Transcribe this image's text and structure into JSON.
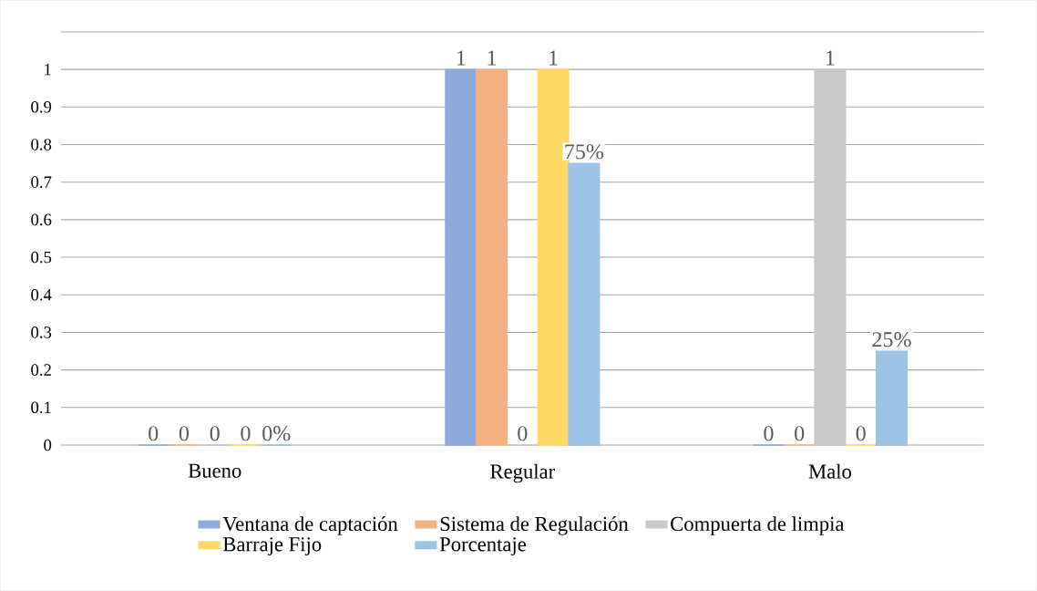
{
  "chart_data": {
    "type": "bar",
    "categories": [
      "Bueno",
      "Regular",
      "Malo"
    ],
    "series": [
      {
        "name": "Ventana de captación",
        "color": "#8faadc",
        "values": [
          0,
          1,
          0
        ],
        "value_labels": [
          "0",
          "1",
          "0"
        ]
      },
      {
        "name": "Sistema de Regulación",
        "color": "#f4b183",
        "values": [
          0,
          1,
          0
        ],
        "value_labels": [
          "0",
          "1",
          "0"
        ]
      },
      {
        "name": "Compuerta de limpia",
        "color": "#c9c9c9",
        "values": [
          0,
          0,
          1
        ],
        "value_labels": [
          "0",
          "0",
          "1"
        ]
      },
      {
        "name": "Barraje Fijo",
        "color": "#ffd966",
        "values": [
          0,
          1,
          0
        ],
        "value_labels": [
          "0",
          "1",
          "0"
        ]
      },
      {
        "name": "Porcentaje",
        "color": "#9dc3e6",
        "values": [
          0,
          0.75,
          0.25
        ],
        "value_labels": [
          "0%",
          "75%",
          "25%"
        ]
      }
    ],
    "ylim": [
      0,
      1.1
    ],
    "yticks": [
      0,
      0.1,
      0.2,
      0.3,
      0.4,
      0.5,
      0.6,
      0.7,
      0.8,
      0.9,
      1,
      {
        "value": 1.1,
        "label": null
      }
    ],
    "grid": true,
    "legend": "bottom"
  }
}
